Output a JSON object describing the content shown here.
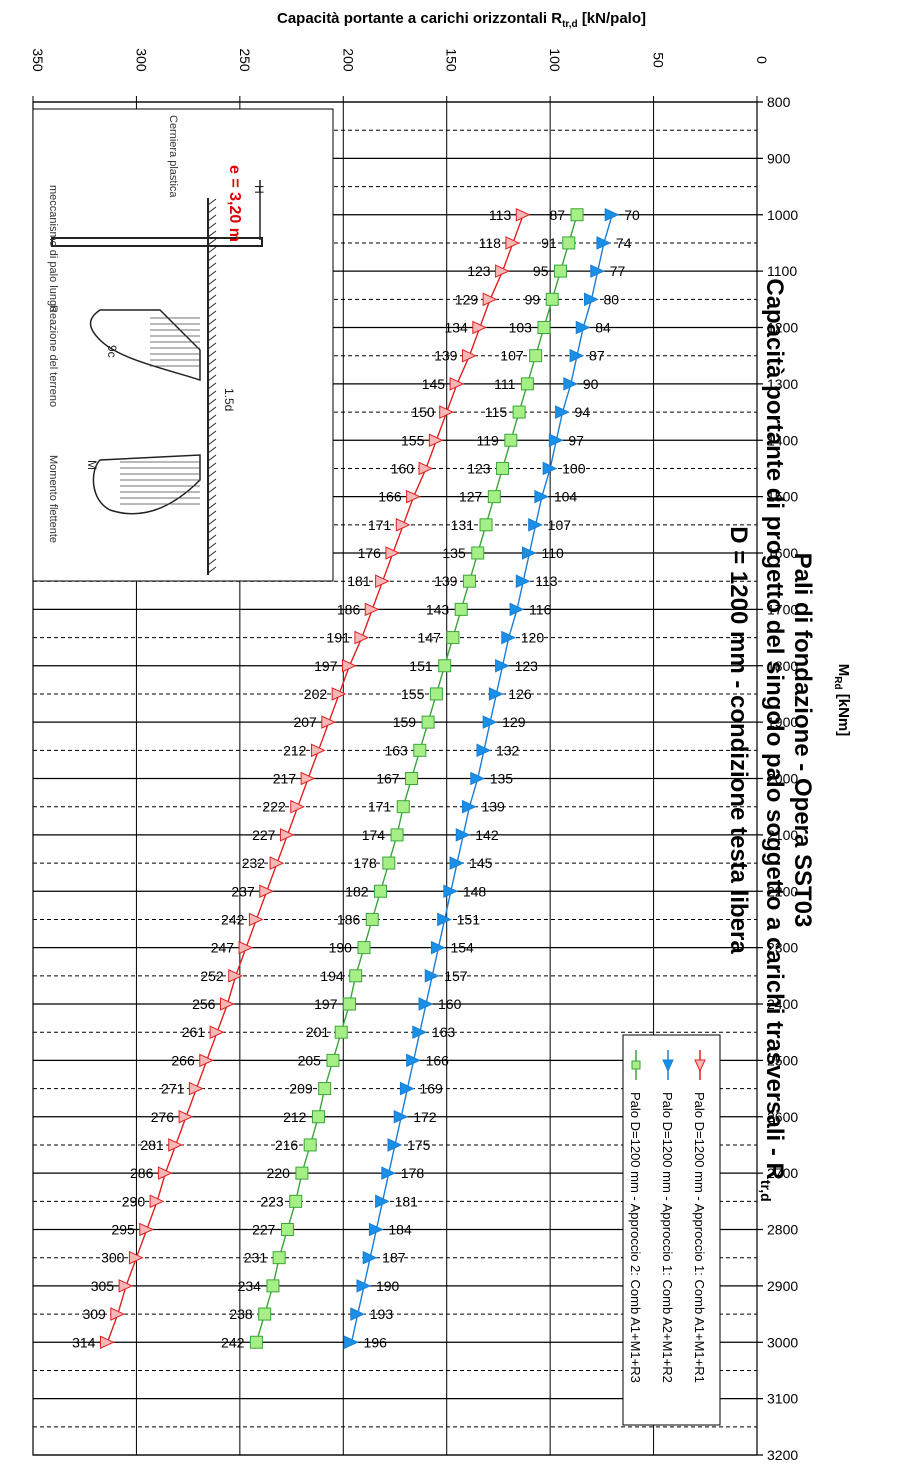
{
  "chart_data": {
    "type": "line",
    "title": [
      "Pali di fondazione - Opera SST03",
      "Capacità portante di progetto del singolo palo soggetto a carichi trasversali - R",
      "D = 1200 mm - condizione testa libera"
    ],
    "title_subscript": "tr,d",
    "xlabel": "Capacità portante a carichi orizzontali R",
    "xlabel_subscript": "tr,d",
    "xlabel_suffix": "[kN/palo]",
    "ylabel": "M",
    "ylabel_subscript": "Rd",
    "ylabel_suffix": "[kNm]",
    "xlim": [
      0,
      350
    ],
    "ylim": [
      800,
      3200
    ],
    "x_ticks": [
      0,
      50,
      100,
      150,
      200,
      250,
      300,
      350
    ],
    "y_ticks": [
      800,
      900,
      1000,
      1100,
      1200,
      1300,
      1400,
      1500,
      1600,
      1700,
      1800,
      1900,
      2000,
      2100,
      2200,
      2300,
      2400,
      2500,
      2600,
      2700,
      2800,
      2900,
      3000,
      3100,
      3200
    ],
    "grid": true,
    "legend_position": "bottom-left",
    "x_values": [
      1000,
      1050,
      1100,
      1150,
      1200,
      1250,
      1300,
      1350,
      1400,
      1450,
      1500,
      1550,
      1600,
      1650,
      1700,
      1750,
      1800,
      1850,
      1900,
      1950,
      2000,
      2050,
      2100,
      2150,
      2200,
      2250,
      2300,
      2350,
      2400,
      2450,
      2500,
      2550,
      2600,
      2650,
      2700,
      2750,
      2800,
      2850,
      2900,
      2950,
      3000
    ],
    "series": [
      {
        "name": "Palo D=1200 mm - Approccio 1: Comb A1+M1+R1",
        "color": "#e02020",
        "fill": "#f7b7b7",
        "marker": "triangle",
        "values": [
          113,
          118,
          123,
          129,
          134,
          139,
          145,
          150,
          155,
          160,
          166,
          171,
          176,
          181,
          186,
          191,
          197,
          202,
          207,
          212,
          217,
          222,
          227,
          232,
          237,
          242,
          247,
          252,
          256,
          261,
          266,
          271,
          276,
          281,
          286,
          290,
          295,
          300,
          305,
          309,
          314
        ]
      },
      {
        "name": "Palo D=1200 mm - Approccio 1: Comb A2+M1+R2",
        "color": "#1a7fd6",
        "fill": "#1a8fe6",
        "marker": "triangle",
        "values": [
          70,
          74,
          77,
          80,
          84,
          87,
          90,
          94,
          97,
          100,
          104,
          107,
          110,
          113,
          116,
          120,
          123,
          126,
          129,
          132,
          135,
          139,
          142,
          145,
          148,
          151,
          154,
          157,
          160,
          163,
          166,
          169,
          172,
          175,
          178,
          181,
          184,
          187,
          190,
          193,
          196
        ]
      },
      {
        "name": "Palo D=1200 mm - Approccio 2: Comb A1+M1+R3",
        "color": "#3aa63a",
        "fill": "#a6ef86",
        "marker": "square",
        "values": [
          87,
          91,
          95,
          99,
          103,
          107,
          111,
          115,
          119,
          123,
          127,
          131,
          135,
          139,
          143,
          147,
          151,
          155,
          159,
          163,
          167,
          171,
          174,
          178,
          182,
          186,
          190,
          194,
          197,
          201,
          205,
          209,
          212,
          216,
          220,
          223,
          227,
          231,
          234,
          238,
          242
        ]
      }
    ],
    "inset": {
      "label_e": "e = 3,20 m",
      "labels": [
        "Cerniera plastica",
        "meccanismo di palo lungo",
        "Reazione del terreno",
        "Momento flettente",
        "H",
        "1.5d",
        "9c",
        "M"
      ]
    }
  }
}
